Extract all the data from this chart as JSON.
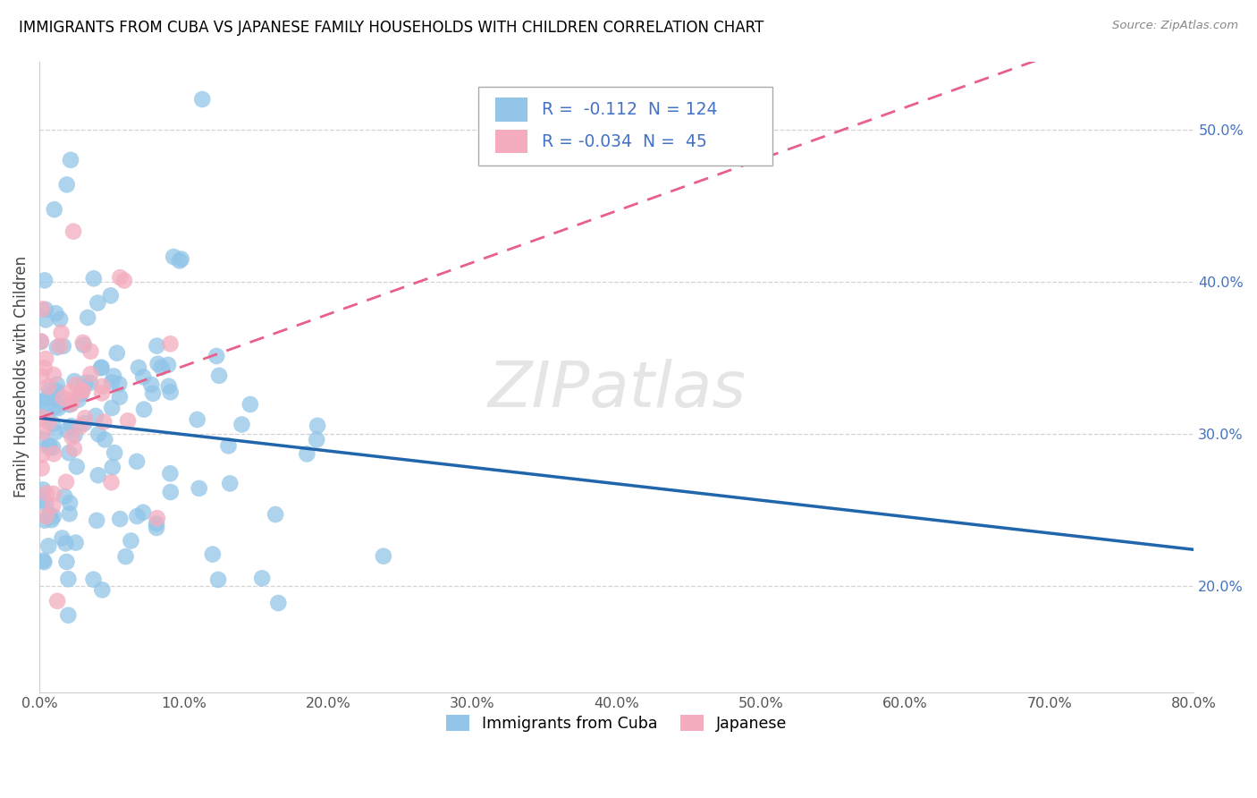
{
  "title": "IMMIGRANTS FROM CUBA VS JAPANESE FAMILY HOUSEHOLDS WITH CHILDREN CORRELATION CHART",
  "source": "Source: ZipAtlas.com",
  "ylabel": "Family Households with Children",
  "legend_labels": [
    "Immigrants from Cuba",
    "Japanese"
  ],
  "r_cuba": -0.112,
  "n_cuba": 124,
  "r_japanese": -0.034,
  "n_japanese": 45,
  "xlim": [
    0.0,
    0.8
  ],
  "ylim": [
    0.13,
    0.545
  ],
  "xticks": [
    0.0,
    0.1,
    0.2,
    0.3,
    0.4,
    0.5,
    0.6,
    0.7,
    0.8
  ],
  "xticklabels": [
    "0.0%",
    "10.0%",
    "20.0%",
    "30.0%",
    "40.0%",
    "50.0%",
    "60.0%",
    "70.0%",
    "80.0%"
  ],
  "yticks": [
    0.2,
    0.3,
    0.4,
    0.5
  ],
  "yticklabels": [
    "20.0%",
    "30.0%",
    "40.0%",
    "50.0%"
  ],
  "color_cuba": "#92C5E8",
  "color_japanese": "#F4ACBE",
  "line_color_cuba": "#2166AC",
  "line_color_japanese": "#E8608A",
  "watermark": "ZIPatlas",
  "background_color": "#ffffff",
  "grid_color": "#C8C8C8",
  "tick_color": "#4472C4",
  "title_color": "#000000",
  "source_color": "#888888"
}
